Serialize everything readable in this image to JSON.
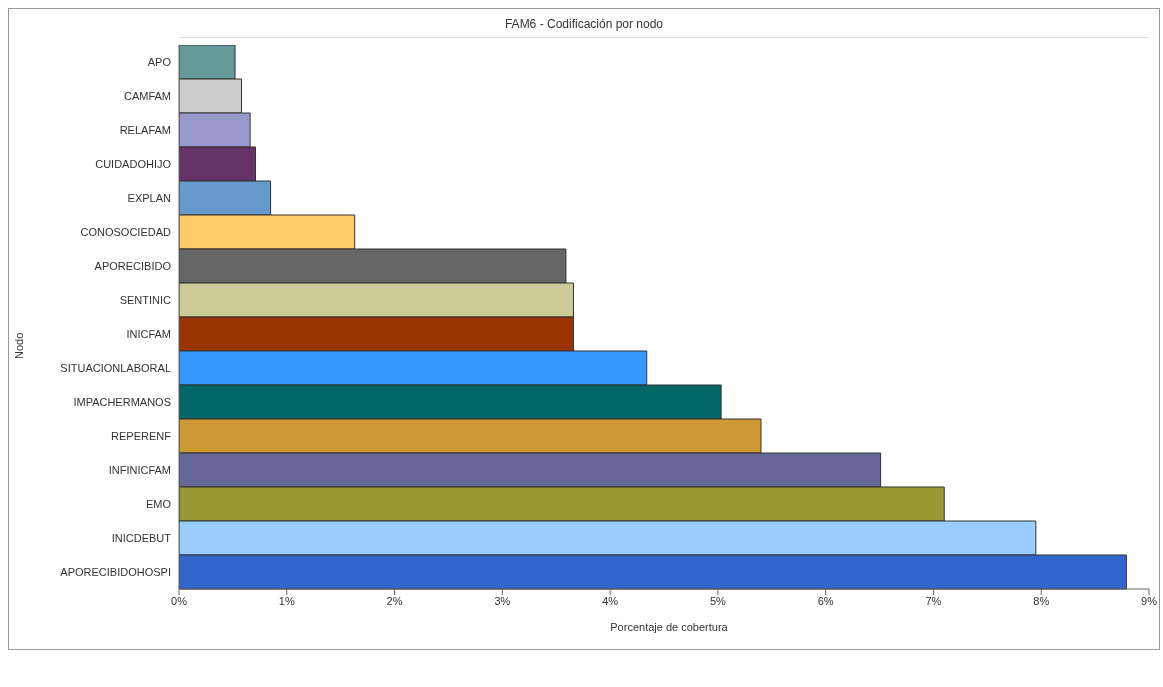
{
  "chart_data": {
    "type": "bar",
    "orientation": "horizontal",
    "title": "FAM6 - Codificación por nodo",
    "xlabel": "Porcentaje de cobertura",
    "ylabel": "Nodo",
    "categories": [
      "APO",
      "CAMFAM",
      "RELAFAM",
      "CUIDADOHIJO",
      "EXPLAN",
      "CONOSOCIEDAD",
      "APORECIBIDO",
      "SENTINIC",
      "INICFAM",
      "SITUACIONLABORAL",
      "IMPACHERMANOS",
      "REPERENF",
      "INFINICFAM",
      "EMO",
      "INICDEBUT",
      "APORECIBIDOHOSPI"
    ],
    "values": [
      0.52,
      0.58,
      0.66,
      0.71,
      0.85,
      1.63,
      3.59,
      3.66,
      3.66,
      4.34,
      5.03,
      5.4,
      6.51,
      7.1,
      7.95,
      8.79
    ],
    "colors": [
      "#669999",
      "#cccccc",
      "#9999cc",
      "#663366",
      "#6699cc",
      "#ffcc66",
      "#666666",
      "#cccc99",
      "#993300",
      "#3399ff",
      "#006666",
      "#cc9933",
      "#666699",
      "#999933",
      "#99ccff",
      "#3366cc"
    ],
    "xlim": [
      0,
      9
    ],
    "xticks": [
      {
        "value": 0,
        "label": "0%"
      },
      {
        "value": 1,
        "label": "1%"
      },
      {
        "value": 2,
        "label": "2%"
      },
      {
        "value": 3,
        "label": "3%"
      },
      {
        "value": 4,
        "label": "4%"
      },
      {
        "value": 5,
        "label": "5%"
      },
      {
        "value": 6,
        "label": "6%"
      },
      {
        "value": 7,
        "label": "7%"
      },
      {
        "value": 8,
        "label": "8%"
      },
      {
        "value": 9,
        "label": "9%"
      }
    ],
    "grid": false,
    "legend": false
  }
}
